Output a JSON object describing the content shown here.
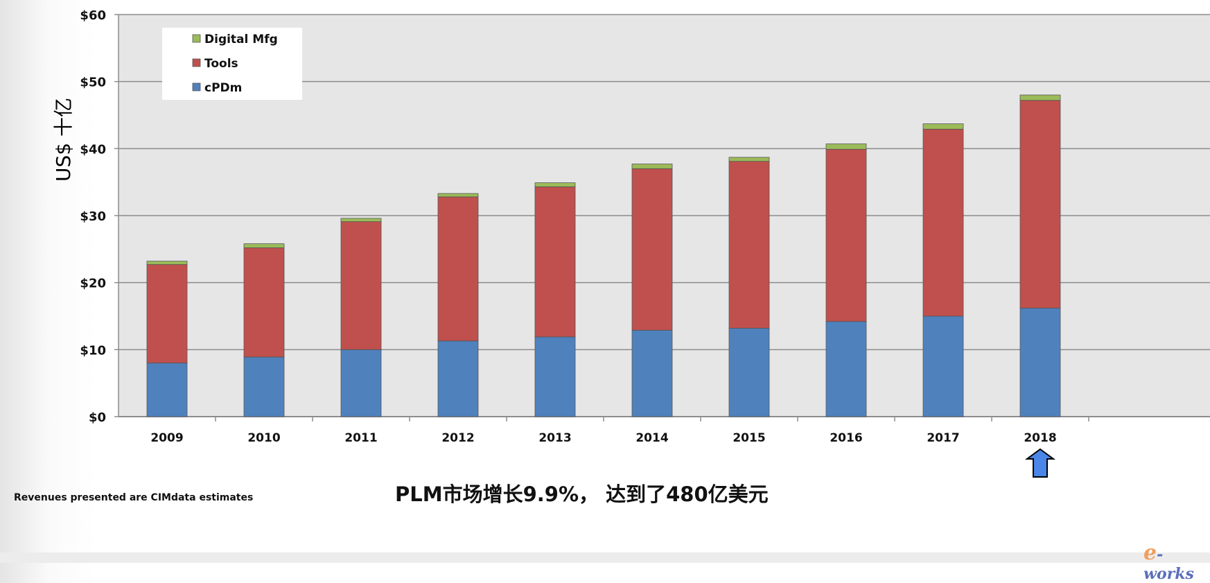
{
  "chart_data": {
    "type": "bar",
    "stacked": true,
    "categories": [
      "2009",
      "2010",
      "2011",
      "2012",
      "2013",
      "2014",
      "2015",
      "2016",
      "2017",
      "2018"
    ],
    "series": [
      {
        "name": "cPDm",
        "color": "#4f81bd",
        "values": [
          8.0,
          8.9,
          10.0,
          11.3,
          11.9,
          12.9,
          13.2,
          14.2,
          15.0,
          16.2
        ]
      },
      {
        "name": "Tools",
        "color": "#c0504d",
        "values": [
          14.7,
          16.3,
          19.1,
          21.5,
          22.4,
          24.1,
          24.9,
          25.7,
          27.9,
          31.0
        ]
      },
      {
        "name": "Digital Mfg",
        "color": "#9bbb59",
        "values": [
          0.5,
          0.6,
          0.5,
          0.5,
          0.6,
          0.7,
          0.6,
          0.8,
          0.8,
          0.8
        ]
      }
    ],
    "legend_order": [
      "Digital Mfg",
      "Tools",
      "cPDm"
    ],
    "legend_position": "top-left",
    "yticks": [
      "$0",
      "$10",
      "$20",
      "$30",
      "$40",
      "$50",
      "$60"
    ],
    "ylim": [
      0,
      60
    ],
    "ylabel": "US$ 十亿",
    "grid": true,
    "plot_background": "#e6e6e6"
  },
  "headline": "PLM市场增长9.9%， 达到了480亿美元",
  "footnote": "Revenues presented are CIMdata estimates",
  "logo": "e-works",
  "logo_e": "e",
  "logo_rest": "-works",
  "arrow_color": "#4a86e8"
}
